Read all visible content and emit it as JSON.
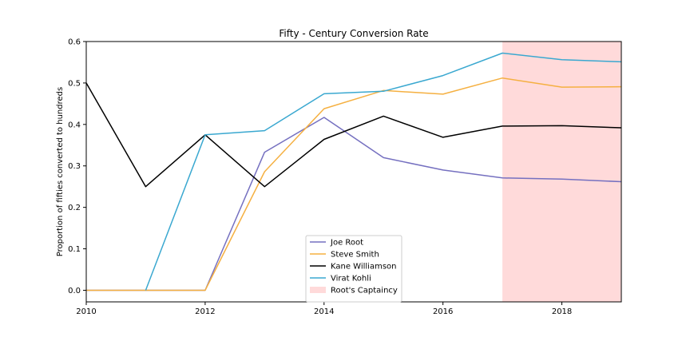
{
  "chart_data": {
    "type": "line",
    "title": "Fifty - Century Conversion Rate",
    "xlabel": "",
    "ylabel": "Proportion of fifties converted to hundreds",
    "xlim": [
      2010,
      2019
    ],
    "ylim": [
      -0.028,
      0.6
    ],
    "xticks": [
      2010,
      2012,
      2014,
      2016,
      2018
    ],
    "xtick_labels": [
      "2010",
      "2012",
      "2014",
      "2016",
      "2018"
    ],
    "yticks": [
      0.0,
      0.1,
      0.2,
      0.3,
      0.4,
      0.5,
      0.6
    ],
    "ytick_labels": [
      "0.0",
      "0.1",
      "0.2",
      "0.3",
      "0.4",
      "0.5",
      "0.6"
    ],
    "x": [
      2010,
      2011,
      2012,
      2013,
      2014,
      2015,
      2016,
      2017,
      2018,
      2019
    ],
    "series": [
      {
        "name": "Joe Root",
        "color": "#7570c0",
        "values": [
          0.0,
          0.0,
          0.0,
          0.333,
          0.417,
          0.32,
          0.29,
          0.271,
          0.268,
          0.262
        ]
      },
      {
        "name": "Steve Smith",
        "color": "#f5b041",
        "values": [
          0.0,
          0.0,
          0.0,
          0.286,
          0.438,
          0.482,
          0.473,
          0.512,
          0.49,
          0.491
        ]
      },
      {
        "name": "Kane Williamson",
        "color": "#000000",
        "values": [
          0.5,
          0.25,
          0.375,
          0.25,
          0.364,
          0.42,
          0.369,
          0.396,
          0.397,
          0.392
        ]
      },
      {
        "name": "Virat Kohli",
        "color": "#3aa8d0",
        "values": [
          null,
          0.0,
          0.375,
          0.385,
          0.474,
          0.48,
          0.518,
          0.572,
          0.556,
          0.551
        ]
      }
    ],
    "shaded_region": {
      "label": "Root's Captaincy",
      "x_start": 2017,
      "x_end": 2019,
      "color": "#ffdada"
    },
    "legend_position": "lower-center",
    "grid": false
  }
}
